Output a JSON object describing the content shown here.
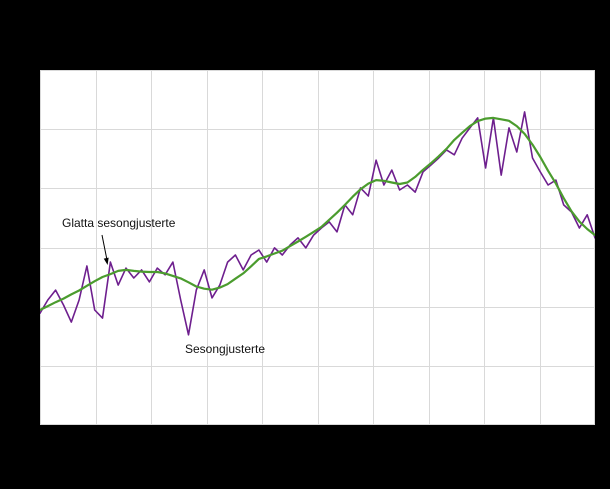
{
  "page": {
    "background": "#000000"
  },
  "plot": {
    "background": "#ffffff",
    "grid_color": "#d9d9d9"
  },
  "annotations": {
    "smoothed_label": "Glatta sesongjusterte",
    "seasonal_label": "Sesongjusterte"
  },
  "chart_data": {
    "type": "line",
    "title": "",
    "xlabel": "",
    "ylabel": "",
    "axis_tick_labels_visible": false,
    "ylim": [
      0,
      100
    ],
    "grid": {
      "visible": true,
      "columns": 10,
      "rows": 6
    },
    "legend_position": "inline-annotations",
    "series": [
      {
        "name": "Sesongjusterte",
        "color": "#6e1f8e",
        "stroke_width": 1.6,
        "values": [
          31.5,
          35.2,
          38.0,
          33.8,
          29.0,
          35.2,
          44.8,
          32.4,
          30.1,
          45.9,
          39.4,
          44.2,
          41.4,
          43.7,
          40.3,
          44.2,
          42.3,
          45.9,
          35.2,
          25.4,
          38.0,
          43.7,
          35.8,
          39.4,
          45.9,
          47.9,
          43.7,
          47.9,
          49.3,
          45.9,
          49.9,
          47.9,
          50.7,
          52.7,
          49.9,
          53.5,
          55.5,
          57.2,
          54.4,
          62.0,
          59.2,
          66.8,
          64.5,
          74.6,
          67.6,
          71.8,
          66.2,
          67.6,
          65.6,
          71.3,
          73.2,
          75.2,
          77.5,
          76.1,
          80.8,
          83.7,
          86.5,
          72.4,
          86.5,
          70.4,
          83.7,
          76.9,
          88.2,
          75.2,
          71.3,
          67.6,
          69.0,
          62.0,
          60.0,
          55.5,
          59.2,
          52.7
        ]
      },
      {
        "name": "Glatta sesongjusterte",
        "color": "#4b9c2e",
        "stroke_width": 2.2,
        "values": [
          32.4,
          33.5,
          34.6,
          35.6,
          36.8,
          37.9,
          39.2,
          40.5,
          41.7,
          42.5,
          43.4,
          43.7,
          43.4,
          43.2,
          43.1,
          43.1,
          42.7,
          42.0,
          41.3,
          40.2,
          39.0,
          38.4,
          38.1,
          38.7,
          39.7,
          41.2,
          42.7,
          44.7,
          46.8,
          47.5,
          48.3,
          49.1,
          50.4,
          51.7,
          53.0,
          54.4,
          55.8,
          57.8,
          59.8,
          62.0,
          64.3,
          66.4,
          68.0,
          69.0,
          68.8,
          68.3,
          67.9,
          68.3,
          69.9,
          71.9,
          73.7,
          75.7,
          77.8,
          80.3,
          82.3,
          84.2,
          85.6,
          86.3,
          86.5,
          86.1,
          85.7,
          84.2,
          82.0,
          79.0,
          75.5,
          71.6,
          68.0,
          63.9,
          60.2,
          57.3,
          55.2,
          53.5
        ]
      }
    ]
  }
}
